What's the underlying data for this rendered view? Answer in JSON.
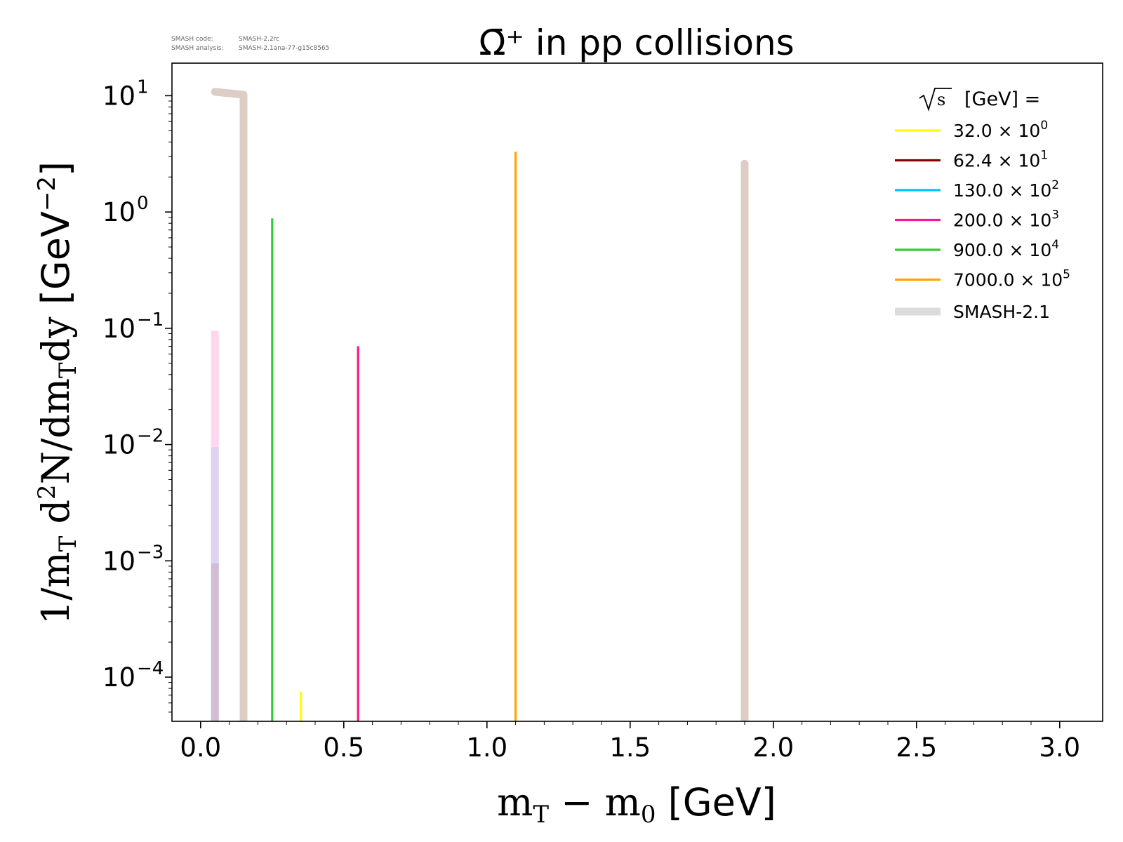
{
  "chart_data": {
    "type": "line",
    "title": "Ω̄⁺ in pp collisions",
    "xlabel": "m_T - m_0 [GeV]",
    "ylabel": "1/m_T d²N/dm_Tdy [GeV⁻²]",
    "xlim": [
      -0.1,
      3.15
    ],
    "ylim_log10": [
      -4.38,
      1.28
    ],
    "x_scale": "linear",
    "y_scale": "log",
    "grid": false,
    "legend_placement": "top-right",
    "x_ticks": [
      0.0,
      0.5,
      1.0,
      1.5,
      2.0,
      2.5,
      3.0
    ],
    "x_tick_labels": [
      "0.0",
      "0.5",
      "1.0",
      "1.5",
      "2.0",
      "2.5",
      "3.0"
    ],
    "y_ticks": [
      {
        "base": "10",
        "exp": "1",
        "value": 10
      },
      {
        "base": "10",
        "exp": "0",
        "value": 1
      },
      {
        "base": "10",
        "exp": "−1",
        "value": 0.1
      },
      {
        "base": "10",
        "exp": "−2",
        "value": 0.01
      },
      {
        "base": "10",
        "exp": "−3",
        "value": 0.001
      },
      {
        "base": "10",
        "exp": "−4",
        "value": 0.0001
      }
    ],
    "legend_title": "[GeV] =",
    "legend_sqrt_symbol": "s",
    "series": [
      {
        "name": "32.0",
        "exp": "0",
        "color": "#ffff00",
        "points": [
          [
            0.35,
            7.5e-05
          ],
          [
            0.35,
            1e-05
          ]
        ]
      },
      {
        "name": "62.4",
        "exp": "1",
        "color": "#8b0000",
        "points": []
      },
      {
        "name": "130.0",
        "exp": "2",
        "color": "#00bfff",
        "points": []
      },
      {
        "name": "200.0",
        "exp": "3",
        "color": "#ff1493",
        "points": [
          [
            0.55,
            0.07
          ],
          [
            0.55,
            1e-05
          ]
        ]
      },
      {
        "name": "900.0",
        "exp": "4",
        "color": "#32cd32",
        "points": [
          [
            0.25,
            0.88
          ],
          [
            0.25,
            1e-05
          ]
        ]
      },
      {
        "name": "7000.0",
        "exp": "5",
        "color": "#ffa500",
        "points": [
          [
            1.1,
            3.3
          ],
          [
            1.1,
            1e-05
          ]
        ]
      }
    ],
    "model": {
      "name": "SMASH-2.1",
      "legend_color": "#dcdcdc",
      "color": "#dccdc5",
      "curves": [
        [
          [
            0.05,
            10.8
          ],
          [
            0.15,
            10.2
          ],
          [
            0.15,
            1e-05
          ]
        ],
        [
          [
            1.9,
            2.6
          ],
          [
            1.9,
            1e-05
          ]
        ]
      ],
      "faded_bars": [
        {
          "x": 0.05,
          "top": 0.095,
          "color": "#ffd6ee"
        },
        {
          "x": 0.05,
          "top": 0.0095,
          "color": "#dcd4f0"
        },
        {
          "x": 0.05,
          "top": 0.00095,
          "color": "#d2bcd4"
        }
      ]
    }
  },
  "meta": {
    "code_label": "SMASH code:",
    "code_value": "SMASH-2.2rc",
    "analysis_label": "SMASH analysis:",
    "analysis_value": "SMASH-2.1ana-77-g15c8565"
  }
}
